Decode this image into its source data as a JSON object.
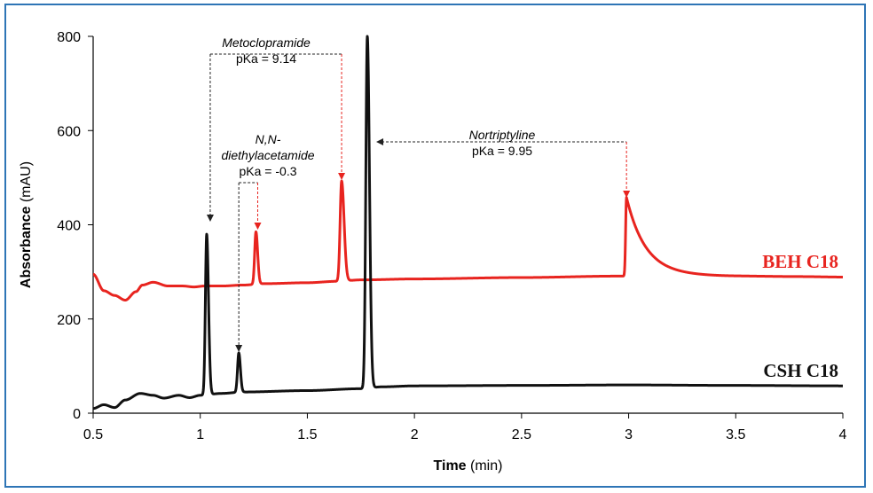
{
  "chart_data": {
    "type": "line",
    "xlabel": {
      "bold": "Time",
      "rest": " (min)"
    },
    "ylabel": {
      "bold": "Absorbance",
      "rest": " (mAU)"
    },
    "xlim": [
      0.5,
      4
    ],
    "ylim": [
      0,
      800
    ],
    "xticks": [
      "0.5",
      "1",
      "1.5",
      "2",
      "2.5",
      "3",
      "3.5",
      "4"
    ],
    "yticks": [
      "0",
      "200",
      "400",
      "600",
      "800"
    ],
    "grid": false,
    "series": [
      {
        "name": "BEH C18",
        "color": "#e8241f",
        "baseline": [
          [
            0.5,
            295
          ],
          [
            0.55,
            260
          ],
          [
            0.6,
            250
          ],
          [
            0.65,
            240
          ],
          [
            0.7,
            258
          ],
          [
            0.73,
            272
          ],
          [
            0.78,
            278
          ],
          [
            0.85,
            270
          ],
          [
            0.92,
            270
          ],
          [
            0.97,
            268
          ],
          [
            1.02,
            270
          ],
          [
            1.1,
            270
          ],
          [
            1.2,
            272
          ],
          [
            1.3,
            275
          ],
          [
            1.5,
            277
          ],
          [
            1.64,
            280
          ],
          [
            1.75,
            283
          ],
          [
            2.0,
            285
          ],
          [
            2.5,
            288
          ],
          [
            2.95,
            291
          ],
          [
            3.2,
            292
          ],
          [
            3.5,
            291
          ],
          [
            3.8,
            290
          ],
          [
            4.0,
            289
          ]
        ],
        "peaks": [
          {
            "rt": 1.26,
            "height": 385,
            "sigma": 0.006,
            "tail": 0.008
          },
          {
            "rt": 1.66,
            "height": 493,
            "sigma": 0.007,
            "tail": 0.018
          },
          {
            "rt": 2.99,
            "height": 458,
            "sigma": 0.004,
            "tail": 0.09
          }
        ]
      },
      {
        "name": "CSH C18",
        "color": "#111111",
        "baseline": [
          [
            0.5,
            10
          ],
          [
            0.55,
            18
          ],
          [
            0.6,
            12
          ],
          [
            0.65,
            28
          ],
          [
            0.72,
            42
          ],
          [
            0.78,
            38
          ],
          [
            0.83,
            32
          ],
          [
            0.9,
            38
          ],
          [
            0.95,
            33
          ],
          [
            1.0,
            38
          ],
          [
            1.1,
            42
          ],
          [
            1.2,
            45
          ],
          [
            1.5,
            48
          ],
          [
            1.75,
            52
          ],
          [
            1.85,
            56
          ],
          [
            2.0,
            58
          ],
          [
            2.5,
            59
          ],
          [
            3.0,
            60
          ],
          [
            3.5,
            59
          ],
          [
            4.0,
            58
          ]
        ],
        "peaks": [
          {
            "rt": 1.03,
            "height": 380,
            "sigma": 0.006,
            "tail": 0.01
          },
          {
            "rt": 1.18,
            "height": 128,
            "sigma": 0.006,
            "tail": 0.006
          },
          {
            "rt": 1.78,
            "height": 800,
            "sigma": 0.007,
            "tail": 0.012
          }
        ]
      }
    ],
    "series_labels": [
      {
        "text": "BEH C18",
        "color": "#e8241f"
      },
      {
        "text": "CSH C18",
        "color": "#111111"
      }
    ],
    "annotations": [
      {
        "name": "metoclopramide",
        "lines": [
          {
            "text": "Metoclopramide",
            "italic": true
          },
          {
            "text": "pKa = 9.14",
            "italic": false
          }
        ],
        "csh_rt": 1.03,
        "beh_rt": 1.66
      },
      {
        "name": "diethylacetamide",
        "lines": [
          {
            "text": "N,N-",
            "italic": true
          },
          {
            "text": "diethylacetamide",
            "italic": true
          },
          {
            "text": "pKa = -0.3",
            "italic": false
          }
        ],
        "csh_rt": 1.18,
        "beh_rt": 1.26
      },
      {
        "name": "nortriptyline",
        "lines": [
          {
            "text": "Nortriptyline",
            "italic": true
          },
          {
            "text": "pKa = 9.95",
            "italic": false
          }
        ],
        "csh_rt": 1.78,
        "beh_rt": 2.99
      }
    ]
  }
}
